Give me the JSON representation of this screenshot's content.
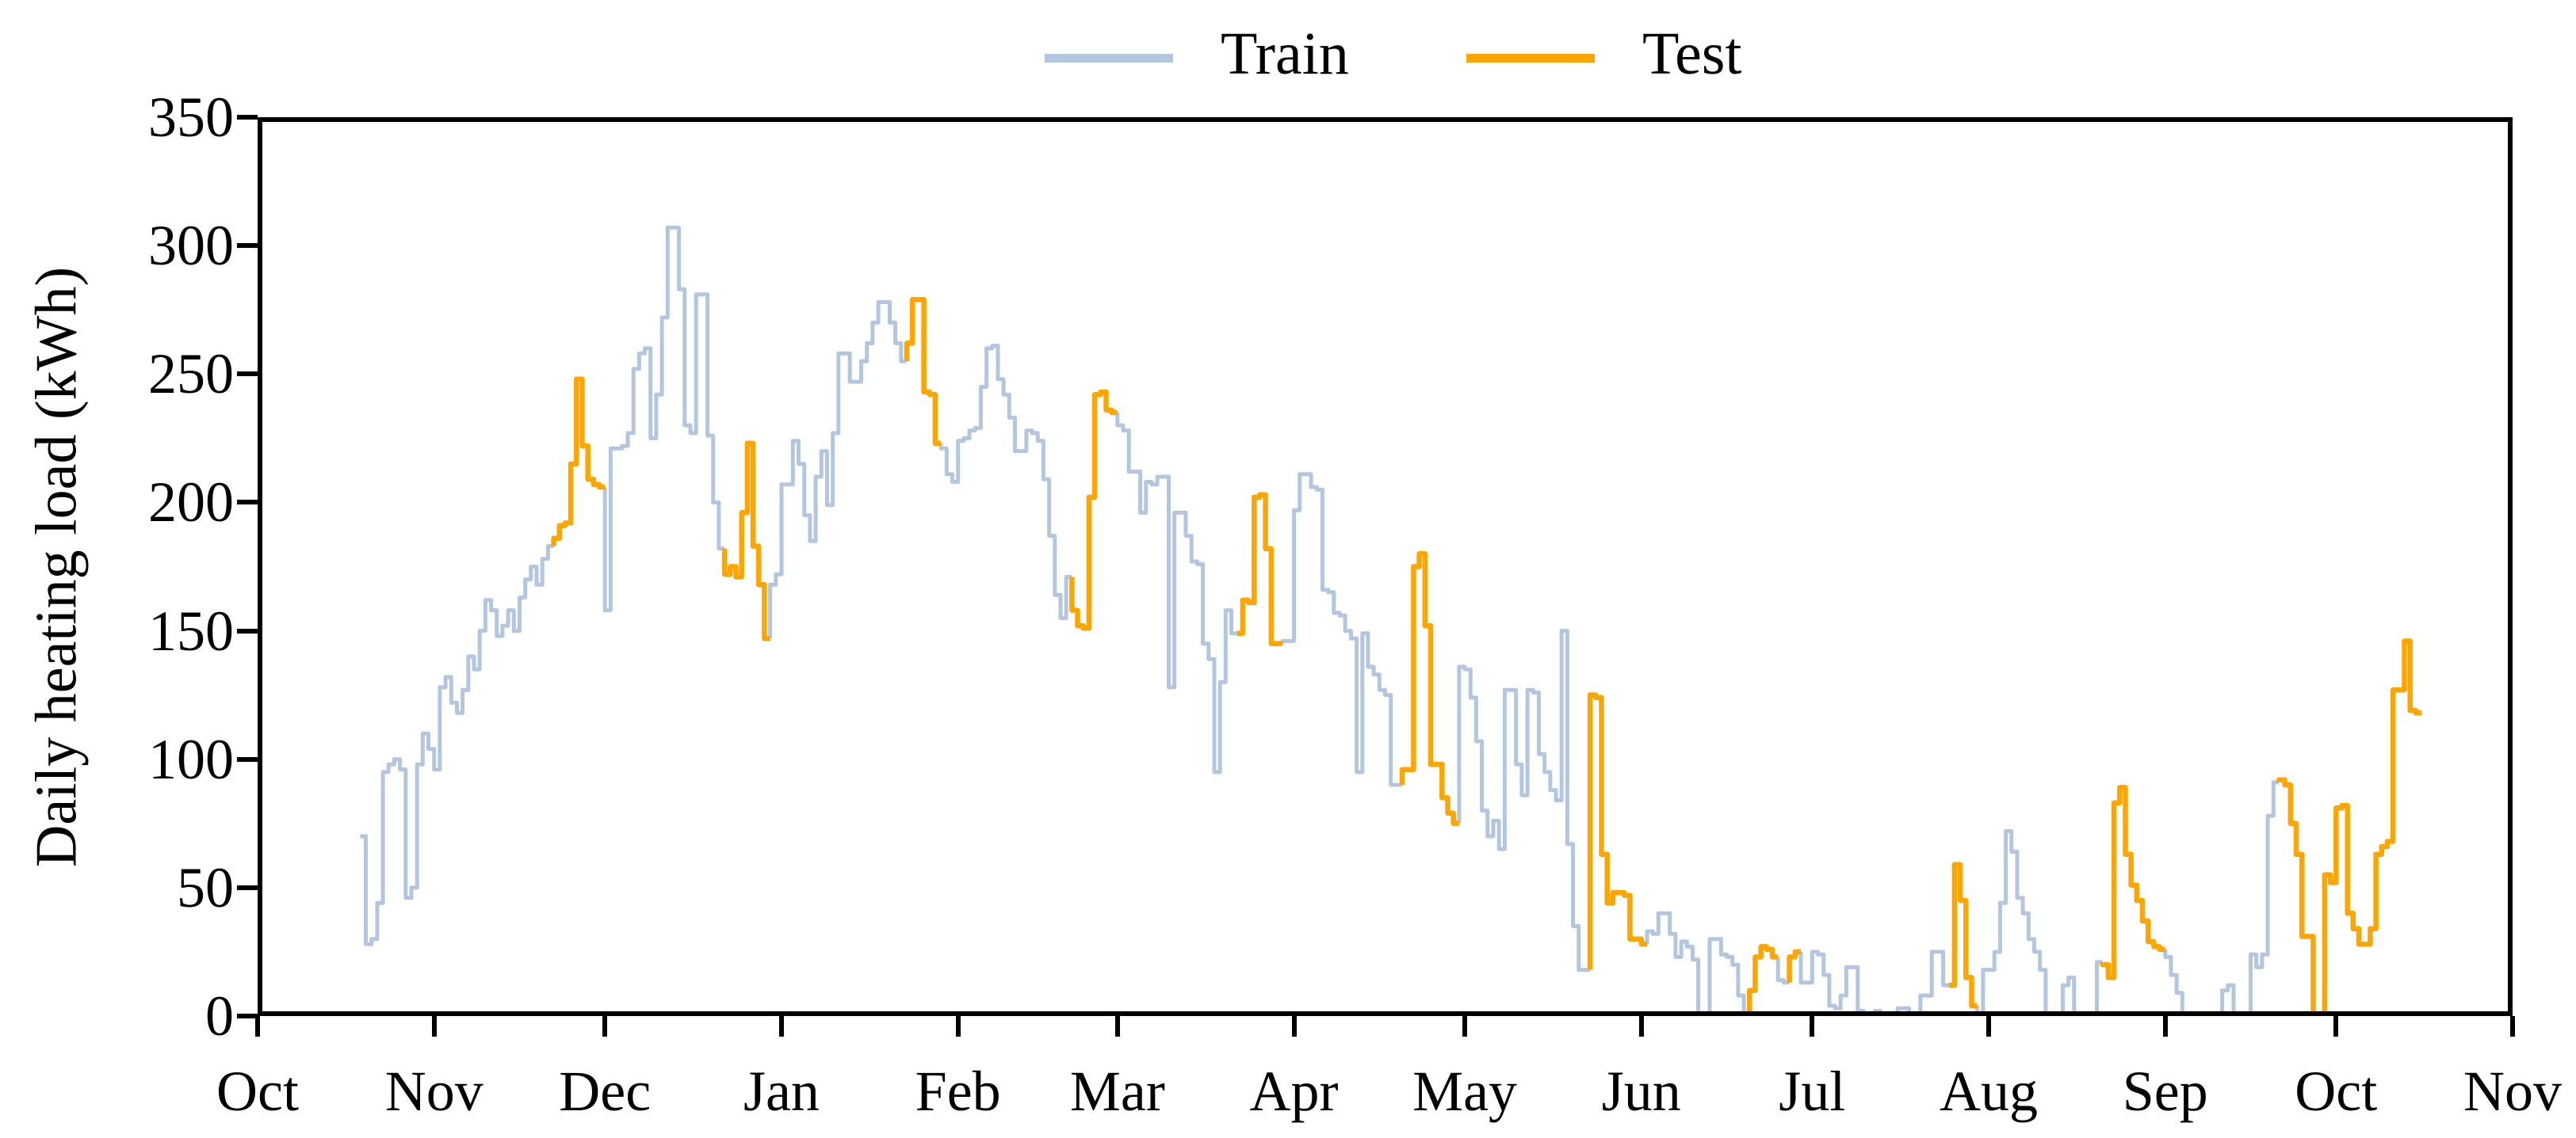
{
  "page": {
    "background": "#ffffff"
  },
  "legend": {
    "position": "top-center",
    "items": [
      {
        "label": "Train",
        "color": "#b2c6e0"
      },
      {
        "label": "Test",
        "color": "#ffa500"
      }
    ]
  },
  "chart_data": {
    "type": "line",
    "step_style": "post",
    "title": "",
    "xlabel": "",
    "ylabel": "Daily heating load (kWh)",
    "ylim": [
      0,
      350
    ],
    "yticks": [
      0,
      50,
      100,
      150,
      200,
      250,
      300,
      350
    ],
    "grid": false,
    "colors": {
      "Train": "#b2c6e0",
      "Test": "#ffa500"
    },
    "x_axis": {
      "days_total": 396,
      "ticks": [
        {
          "label": "Oct",
          "day": 0
        },
        {
          "label": "Nov",
          "day": 31
        },
        {
          "label": "Dec",
          "day": 61
        },
        {
          "label": "Jan",
          "day": 92
        },
        {
          "label": "Feb",
          "day": 123
        },
        {
          "label": "Mar",
          "day": 151
        },
        {
          "label": "Apr",
          "day": 182
        },
        {
          "label": "May",
          "day": 212
        },
        {
          "label": "Jun",
          "day": 243
        },
        {
          "label": "Jul",
          "day": 273
        },
        {
          "label": "Aug",
          "day": 304
        },
        {
          "label": "Sep",
          "day": 335
        },
        {
          "label": "Oct",
          "day": 365
        },
        {
          "label": "Nov",
          "day": 396
        }
      ]
    },
    "start_offset_days": 18,
    "units": "kWh",
    "segments": [
      {
        "set": "Train",
        "values": [
          70,
          28,
          30,
          44,
          95,
          98,
          100,
          96,
          46,
          50,
          98,
          110,
          104,
          96,
          128,
          132,
          122,
          118,
          127,
          140,
          135,
          150,
          162,
          158,
          148,
          152,
          158,
          150,
          163,
          170,
          175,
          168,
          178,
          183
        ]
      },
      {
        "set": "Test",
        "values": [
          186,
          191,
          192,
          215,
          248,
          222,
          209,
          207,
          206
        ]
      },
      {
        "set": "Train",
        "values": [
          158,
          221,
          221,
          222,
          227,
          252,
          258,
          260,
          225,
          242,
          272,
          307,
          307,
          283,
          230,
          227,
          281,
          281,
          226,
          200,
          182
        ]
      },
      {
        "set": "Test",
        "values": [
          172,
          175,
          171,
          196,
          223,
          183,
          168,
          147
        ]
      },
      {
        "set": "Train",
        "values": [
          168,
          172,
          207,
          207,
          224,
          215,
          195,
          185,
          210,
          220,
          199,
          227,
          258,
          258,
          247,
          247,
          255,
          262,
          270,
          278,
          278,
          270,
          262,
          255
        ]
      },
      {
        "set": "Test",
        "values": [
          262,
          279,
          279,
          243,
          242,
          223
        ]
      },
      {
        "set": "Train",
        "values": [
          221,
          211,
          208,
          224,
          225,
          228,
          229,
          245,
          260,
          261,
          248,
          242,
          233,
          220,
          220,
          228,
          227,
          224,
          209,
          187,
          164,
          155,
          171
        ]
      },
      {
        "set": "Test",
        "values": [
          158,
          152,
          151,
          202,
          242,
          243,
          236,
          235
        ]
      },
      {
        "set": "Train",
        "values": [
          230,
          228,
          212,
          212,
          196,
          208,
          207,
          210,
          210,
          128,
          196,
          196,
          187,
          177,
          176,
          145,
          139,
          95,
          130,
          158,
          149
        ]
      },
      {
        "set": "Test",
        "values": [
          149,
          162,
          161,
          202,
          203,
          182,
          145,
          145
        ]
      },
      {
        "set": "Train",
        "values": [
          146,
          146,
          197,
          211,
          211,
          206,
          205,
          166,
          165,
          157,
          156,
          150,
          147,
          95,
          149,
          136,
          133,
          127,
          125,
          90,
          90
        ]
      },
      {
        "set": "Test",
        "values": [
          96,
          96,
          175,
          180,
          152,
          98,
          98,
          85,
          79,
          75
        ]
      },
      {
        "set": "Train",
        "values": [
          136,
          135,
          124,
          107,
          80,
          70,
          76,
          65,
          127,
          127,
          98,
          86,
          127,
          126,
          102,
          95,
          88,
          84,
          150,
          67,
          35,
          18,
          18
        ]
      },
      {
        "set": "Test",
        "values": [
          125,
          124,
          63,
          44,
          48,
          48,
          47,
          30,
          30,
          28
        ]
      },
      {
        "set": "Train",
        "values": [
          33,
          32,
          40,
          40,
          32,
          23,
          29,
          27,
          22,
          0,
          0,
          30,
          30,
          24,
          23,
          20,
          8,
          0
        ]
      },
      {
        "set": "Test",
        "values": [
          10,
          23,
          27,
          26,
          23
        ]
      },
      {
        "set": "Train",
        "values": [
          14,
          13
        ]
      },
      {
        "set": "Test",
        "values": [
          23,
          25
        ]
      },
      {
        "set": "Train",
        "values": [
          13,
          13,
          25,
          24,
          16,
          4,
          3,
          8,
          19,
          19,
          2,
          0,
          0,
          2,
          0,
          0,
          0,
          3,
          3,
          0,
          0,
          8,
          8,
          25,
          25,
          12
        ]
      },
      {
        "set": "Test",
        "values": [
          12,
          59,
          45,
          15,
          4
        ]
      },
      {
        "set": "Train",
        "values": [
          0,
          18,
          18,
          25,
          44,
          72,
          64,
          46,
          40,
          30,
          25,
          18,
          0,
          0,
          0,
          12,
          15,
          0,
          0,
          0,
          0,
          21
        ]
      },
      {
        "set": "Test",
        "values": [
          20,
          15,
          83,
          89,
          63,
          51,
          45,
          37,
          29,
          27,
          26
        ]
      },
      {
        "set": "Train",
        "values": [
          23,
          16,
          9,
          0,
          0,
          0,
          0,
          0,
          0,
          0,
          10,
          12,
          0,
          0,
          0,
          24,
          19,
          24,
          78,
          91
        ]
      },
      {
        "set": "Test",
        "values": [
          92,
          90,
          75,
          63,
          31,
          31,
          0,
          0,
          55,
          52,
          81,
          82,
          40,
          34,
          28,
          28,
          34,
          63,
          66,
          68,
          127,
          127,
          146,
          119,
          118
        ]
      }
    ]
  }
}
